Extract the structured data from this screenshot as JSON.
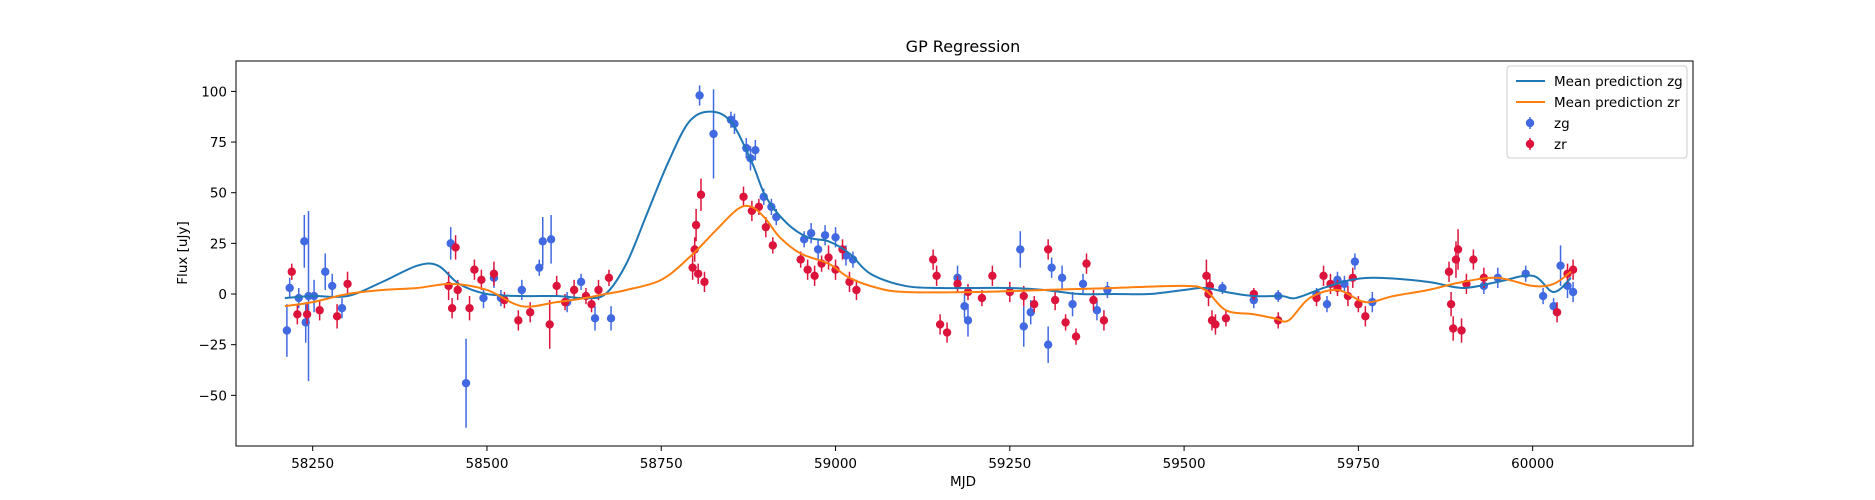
{
  "chart_data": {
    "type": "scatter",
    "title": "GP Regression",
    "xlabel": "MJD",
    "ylabel": "Flux [uJy]",
    "xlim": [
      58140,
      60230
    ],
    "ylim": [
      -75,
      115
    ],
    "xticks": [
      58250,
      58500,
      58750,
      59000,
      59250,
      59500,
      59750,
      60000
    ],
    "yticks": [
      -50,
      -25,
      0,
      25,
      50,
      75,
      100
    ],
    "legend_location": "upper right",
    "legend": [
      "Mean prediction zg",
      "Mean prediction zr",
      "zg",
      "zr"
    ],
    "colors": {
      "mean_zg": "#1f77b4",
      "mean_zr": "#ff7f0e",
      "zg": "#4169e1",
      "zr": "#dc143c"
    },
    "lines": [
      {
        "name": "Mean prediction zg",
        "color": "#1f77b4",
        "points": [
          [
            58210,
            -2
          ],
          [
            58250,
            -1
          ],
          [
            58300,
            -1
          ],
          [
            58350,
            6
          ],
          [
            58400,
            14
          ],
          [
            58430,
            14
          ],
          [
            58460,
            5
          ],
          [
            58500,
            0
          ],
          [
            58550,
            -1
          ],
          [
            58600,
            -1
          ],
          [
            58640,
            -2
          ],
          [
            58670,
            0
          ],
          [
            58700,
            15
          ],
          [
            58730,
            40
          ],
          [
            58760,
            65
          ],
          [
            58790,
            85
          ],
          [
            58820,
            90
          ],
          [
            58850,
            85
          ],
          [
            58880,
            65
          ],
          [
            58900,
            48
          ],
          [
            58930,
            35
          ],
          [
            58960,
            28
          ],
          [
            58990,
            26
          ],
          [
            59020,
            20
          ],
          [
            59050,
            10
          ],
          [
            59100,
            4
          ],
          [
            59150,
            3
          ],
          [
            59200,
            3
          ],
          [
            59250,
            3
          ],
          [
            59300,
            2
          ],
          [
            59350,
            0
          ],
          [
            59400,
            0
          ],
          [
            59450,
            0
          ],
          [
            59500,
            2
          ],
          [
            59530,
            3
          ],
          [
            59560,
            1
          ],
          [
            59600,
            -1
          ],
          [
            59640,
            -1
          ],
          [
            59660,
            -2
          ],
          [
            59700,
            3
          ],
          [
            59740,
            7
          ],
          [
            59780,
            8
          ],
          [
            59850,
            6
          ],
          [
            59900,
            3
          ],
          [
            59950,
            6
          ],
          [
            60000,
            9
          ],
          [
            60030,
            1
          ],
          [
            60055,
            8
          ]
        ]
      },
      {
        "name": "Mean prediction zr",
        "color": "#ff7f0e",
        "points": [
          [
            58210,
            -6
          ],
          [
            58250,
            -4
          ],
          [
            58300,
            0
          ],
          [
            58350,
            2
          ],
          [
            58400,
            3
          ],
          [
            58450,
            5
          ],
          [
            58500,
            2
          ],
          [
            58550,
            -6
          ],
          [
            58600,
            -4
          ],
          [
            58640,
            -2
          ],
          [
            58670,
            0
          ],
          [
            58700,
            2
          ],
          [
            58750,
            7
          ],
          [
            58790,
            18
          ],
          [
            58830,
            32
          ],
          [
            58860,
            42
          ],
          [
            58880,
            43
          ],
          [
            58900,
            37
          ],
          [
            58920,
            28
          ],
          [
            58950,
            20
          ],
          [
            58990,
            15
          ],
          [
            59020,
            8
          ],
          [
            59060,
            3
          ],
          [
            59100,
            1
          ],
          [
            59200,
            1
          ],
          [
            59300,
            2
          ],
          [
            59400,
            3
          ],
          [
            59500,
            4
          ],
          [
            59530,
            2
          ],
          [
            59560,
            -8
          ],
          [
            59600,
            -10
          ],
          [
            59630,
            -12
          ],
          [
            59650,
            -13
          ],
          [
            59680,
            -2
          ],
          [
            59720,
            2
          ],
          [
            59760,
            -4
          ],
          [
            59800,
            -1
          ],
          [
            59850,
            2
          ],
          [
            59900,
            6
          ],
          [
            59950,
            8
          ],
          [
            60000,
            4
          ],
          [
            60030,
            5
          ],
          [
            60055,
            11
          ]
        ]
      }
    ],
    "series": [
      {
        "name": "zg",
        "color": "#4169e1",
        "points": [
          [
            58213,
            -18,
            13
          ],
          [
            58217,
            3,
            5
          ],
          [
            58230,
            -2,
            5
          ],
          [
            58238,
            26,
            13
          ],
          [
            58240,
            -14,
            10
          ],
          [
            58244,
            -1,
            42
          ],
          [
            58252,
            -1,
            8
          ],
          [
            58268,
            11,
            9
          ],
          [
            58278,
            4,
            6
          ],
          [
            58292,
            -7,
            5
          ],
          [
            58448,
            25,
            8
          ],
          [
            58470,
            -44,
            22
          ],
          [
            58495,
            -2,
            5
          ],
          [
            58510,
            8,
            5
          ],
          [
            58520,
            -2,
            4
          ],
          [
            58550,
            2,
            5
          ],
          [
            58575,
            13,
            4
          ],
          [
            58580,
            26,
            12
          ],
          [
            58592,
            27,
            12
          ],
          [
            58615,
            -4,
            5
          ],
          [
            58635,
            6,
            4
          ],
          [
            58655,
            -12,
            6
          ],
          [
            58678,
            -12,
            6
          ],
          [
            58805,
            98,
            5
          ],
          [
            58825,
            79,
            22
          ],
          [
            58850,
            86,
            4
          ],
          [
            58855,
            84,
            5
          ],
          [
            58872,
            72,
            5
          ],
          [
            58878,
            67,
            6
          ],
          [
            58885,
            71,
            5
          ],
          [
            58897,
            48,
            4
          ],
          [
            58908,
            43,
            4
          ],
          [
            58915,
            38,
            4
          ],
          [
            58955,
            27,
            4
          ],
          [
            58965,
            30,
            5
          ],
          [
            58975,
            22,
            5
          ],
          [
            58985,
            29,
            5
          ],
          [
            59000,
            28,
            5
          ],
          [
            59015,
            19,
            5
          ],
          [
            59025,
            17,
            4
          ],
          [
            59175,
            8,
            6
          ],
          [
            59185,
            -6,
            6
          ],
          [
            59190,
            -13,
            8
          ],
          [
            59265,
            22,
            9
          ],
          [
            59270,
            -16,
            10
          ],
          [
            59280,
            -9,
            6
          ],
          [
            59305,
            -25,
            9
          ],
          [
            59310,
            13,
            5
          ],
          [
            59325,
            8,
            6
          ],
          [
            59340,
            -5,
            6
          ],
          [
            59355,
            5,
            5
          ],
          [
            59375,
            -8,
            5
          ],
          [
            59390,
            2,
            4
          ],
          [
            59555,
            3,
            3
          ],
          [
            59600,
            -3,
            4
          ],
          [
            59635,
            -1,
            3
          ],
          [
            59690,
            0,
            3
          ],
          [
            59705,
            -5,
            4
          ],
          [
            59720,
            7,
            4
          ],
          [
            59730,
            5,
            4
          ],
          [
            59745,
            16,
            4
          ],
          [
            59770,
            -4,
            5
          ],
          [
            59930,
            4,
            4
          ],
          [
            59950,
            8,
            5
          ],
          [
            59990,
            10,
            4
          ],
          [
            60015,
            -1,
            4
          ],
          [
            60030,
            -6,
            4
          ],
          [
            60040,
            14,
            10
          ],
          [
            60050,
            4,
            6
          ],
          [
            60058,
            1,
            5
          ]
        ]
      },
      {
        "name": "zr",
        "color": "#dc143c",
        "points": [
          [
            58220,
            11,
            4
          ],
          [
            58228,
            -10,
            5
          ],
          [
            58242,
            -10,
            5
          ],
          [
            58260,
            -8,
            5
          ],
          [
            58285,
            -11,
            6
          ],
          [
            58300,
            5,
            6
          ],
          [
            58445,
            4,
            7
          ],
          [
            58450,
            -7,
            5
          ],
          [
            58455,
            23,
            6
          ],
          [
            58458,
            2,
            5
          ],
          [
            58475,
            -7,
            6
          ],
          [
            58482,
            12,
            5
          ],
          [
            58492,
            7,
            5
          ],
          [
            58510,
            10,
            6
          ],
          [
            58525,
            -3,
            4
          ],
          [
            58545,
            -13,
            5
          ],
          [
            58562,
            -9,
            5
          ],
          [
            58590,
            -15,
            12
          ],
          [
            58600,
            4,
            5
          ],
          [
            58612,
            -4,
            4
          ],
          [
            58625,
            2,
            5
          ],
          [
            58642,
            -1,
            4
          ],
          [
            58650,
            -5,
            4
          ],
          [
            58660,
            2,
            5
          ],
          [
            58675,
            8,
            4
          ],
          [
            58795,
            13,
            6
          ],
          [
            58798,
            22,
            6
          ],
          [
            58800,
            34,
            8
          ],
          [
            58803,
            10,
            5
          ],
          [
            58807,
            49,
            8
          ],
          [
            58812,
            6,
            5
          ],
          [
            58868,
            48,
            5
          ],
          [
            58880,
            41,
            5
          ],
          [
            58890,
            43,
            4
          ],
          [
            58900,
            33,
            5
          ],
          [
            58910,
            24,
            4
          ],
          [
            58950,
            17,
            4
          ],
          [
            58960,
            12,
            5
          ],
          [
            58970,
            9,
            5
          ],
          [
            58980,
            15,
            4
          ],
          [
            58990,
            18,
            6
          ],
          [
            59000,
            12,
            5
          ],
          [
            59010,
            22,
            5
          ],
          [
            59020,
            6,
            5
          ],
          [
            59030,
            2,
            5
          ],
          [
            59140,
            17,
            5
          ],
          [
            59145,
            9,
            5
          ],
          [
            59150,
            -15,
            5
          ],
          [
            59160,
            -19,
            5
          ],
          [
            59175,
            5,
            4
          ],
          [
            59190,
            1,
            4
          ],
          [
            59210,
            -2,
            4
          ],
          [
            59225,
            9,
            5
          ],
          [
            59250,
            1,
            5
          ],
          [
            59270,
            -1,
            5
          ],
          [
            59285,
            -5,
            4
          ],
          [
            59305,
            22,
            5
          ],
          [
            59315,
            -3,
            5
          ],
          [
            59330,
            -14,
            4
          ],
          [
            59345,
            -21,
            4
          ],
          [
            59360,
            15,
            5
          ],
          [
            59370,
            -3,
            5
          ],
          [
            59385,
            -13,
            5
          ],
          [
            59532,
            9,
            8
          ],
          [
            59535,
            0,
            6
          ],
          [
            59537,
            4,
            6
          ],
          [
            59540,
            -13,
            5
          ],
          [
            59545,
            -15,
            5
          ],
          [
            59560,
            -12,
            4
          ],
          [
            59600,
            0,
            3
          ],
          [
            59635,
            -13,
            4
          ],
          [
            59690,
            -2,
            4
          ],
          [
            59700,
            9,
            5
          ],
          [
            59710,
            5,
            5
          ],
          [
            59720,
            3,
            4
          ],
          [
            59735,
            -1,
            5
          ],
          [
            59742,
            8,
            5
          ],
          [
            59750,
            -5,
            4
          ],
          [
            59760,
            -11,
            5
          ],
          [
            59880,
            11,
            5
          ],
          [
            59883,
            -5,
            6
          ],
          [
            59886,
            -17,
            6
          ],
          [
            59890,
            17,
            9
          ],
          [
            59893,
            22,
            10
          ],
          [
            59898,
            -18,
            6
          ],
          [
            59905,
            5,
            5
          ],
          [
            59915,
            17,
            5
          ],
          [
            59930,
            8,
            5
          ],
          [
            60035,
            -9,
            5
          ],
          [
            60050,
            10,
            5
          ],
          [
            60058,
            12,
            5
          ]
        ]
      }
    ]
  }
}
